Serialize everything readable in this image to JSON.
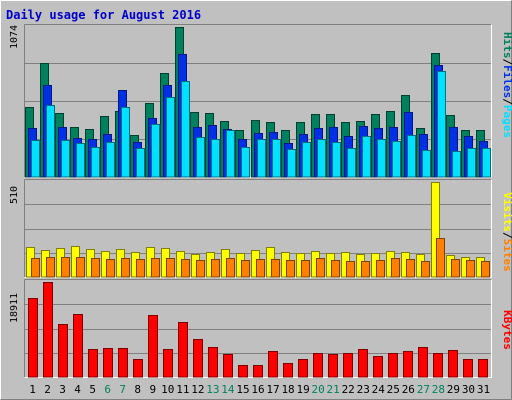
{
  "chart_data": {
    "title": "Daily usage for August 2016",
    "type": "bar",
    "categories": [
      "1",
      "2",
      "3",
      "4",
      "5",
      "6",
      "7",
      "8",
      "9",
      "10",
      "11",
      "12",
      "13",
      "14",
      "15",
      "16",
      "17",
      "18",
      "19",
      "20",
      "21",
      "22",
      "23",
      "24",
      "25",
      "26",
      "27",
      "28",
      "29",
      "30",
      "31"
    ],
    "weekend_days": [
      "6",
      "7",
      "13",
      "14",
      "20",
      "21",
      "27",
      "28"
    ],
    "panels": [
      {
        "id": "hits-files-pages",
        "ymax_label": "1074",
        "ylim": [
          0,
          1074
        ],
        "right_labels": [
          "Pages",
          "Files",
          "Hits"
        ],
        "series": [
          {
            "name": "Hits",
            "color": "#00805c",
            "values": [
              500,
              815,
              460,
              355,
              345,
              440,
              470,
              300,
              530,
              745,
              1074,
              465,
              460,
              400,
              335,
              405,
              395,
              340,
              395,
              450,
              450,
              395,
              400,
              450,
              475,
              585,
              350,
              890,
              445,
              340,
              335
            ]
          },
          {
            "name": "Files",
            "color": "#0030e6",
            "values": [
              350,
              660,
              355,
              280,
              275,
              310,
              620,
              250,
              420,
              660,
              880,
              355,
              375,
              345,
              270,
              315,
              320,
              245,
              305,
              350,
              355,
              290,
              365,
              350,
              360,
              465,
              310,
              800,
              355,
              290,
              260
            ]
          },
          {
            "name": "Pages",
            "color": "#00e0ff",
            "values": [
              265,
              515,
              265,
              240,
              215,
              250,
              500,
              205,
              380,
              575,
              690,
              285,
              275,
              340,
              215,
              270,
              270,
              200,
              250,
              275,
              250,
              210,
              290,
              270,
              260,
              300,
              195,
              760,
              185,
              205,
              205
            ]
          }
        ]
      },
      {
        "id": "sites-visits",
        "ymax_label": "510",
        "ylim": [
          0,
          510
        ],
        "right_labels": [
          "Sites",
          "Visits"
        ],
        "series": [
          {
            "name": "Visits",
            "color": "#ffff00",
            "values": [
              160,
              145,
              155,
              165,
              150,
              140,
              150,
              135,
              160,
              155,
              140,
              125,
              135,
              150,
              130,
              145,
              160,
              135,
              130,
              140,
              130,
              135,
              125,
              130,
              140,
              135,
              125,
              510,
              120,
              110,
              110
            ]
          },
          {
            "name": "Sites",
            "color": "#ff8000",
            "values": [
              100,
              105,
              110,
              105,
              100,
              95,
              100,
              95,
              100,
              100,
              95,
              90,
              95,
              100,
              90,
              95,
              95,
              90,
              90,
              100,
              90,
              85,
              85,
              90,
              100,
              95,
              85,
              210,
              95,
              90,
              85
            ]
          }
        ]
      },
      {
        "id": "kbytes",
        "ymax_label": "18911",
        "ylim": [
          0,
          18911
        ],
        "right_labels": [
          "KBytes"
        ],
        "series": [
          {
            "name": "KBytes",
            "color": "#ff0000",
            "values": [
              15800,
              18911,
              10500,
              12600,
              5600,
              5700,
              5800,
              3500,
              12300,
              5600,
              11000,
              7500,
              6000,
              4500,
              2300,
              2300,
              5200,
              2700,
              3500,
              4800,
              4600,
              4800,
              5600,
              4200,
              4800,
              5100,
              6000,
              4800,
              5300,
              3600,
              3600
            ]
          }
        ]
      }
    ]
  }
}
